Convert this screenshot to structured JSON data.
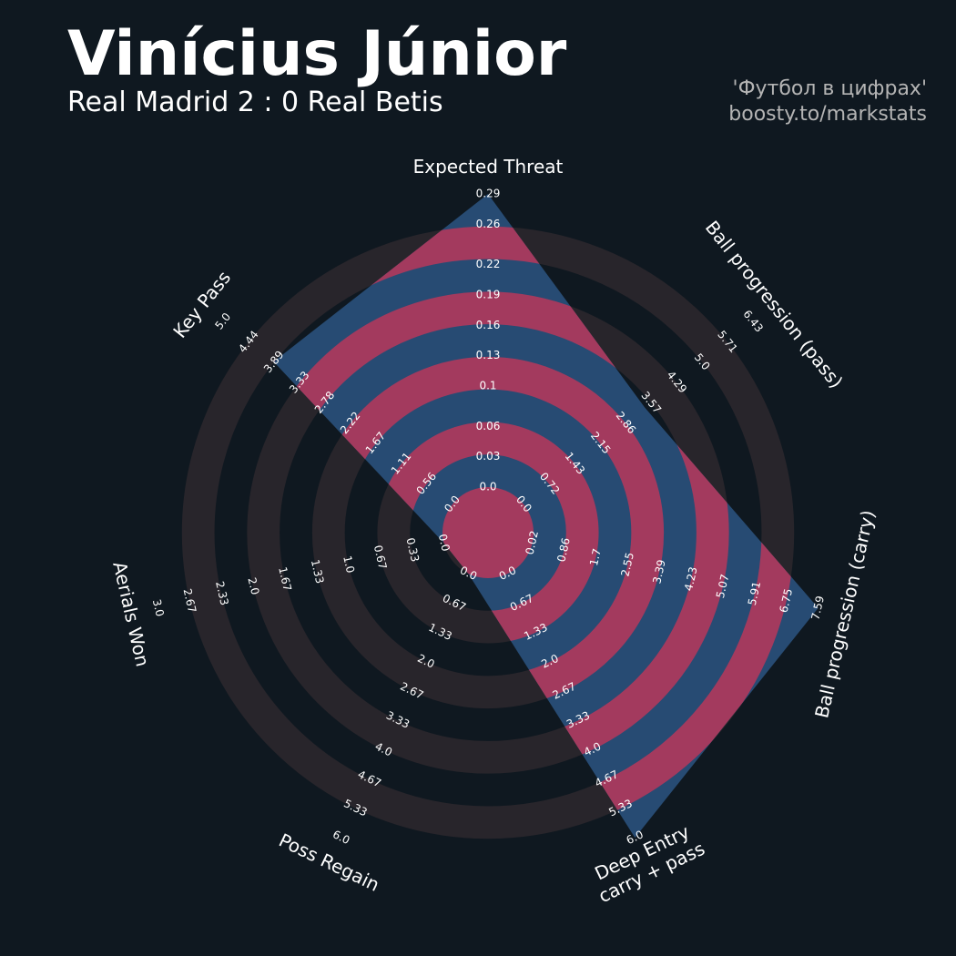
{
  "chart_data": {
    "type": "radar",
    "title": "Vinícius Júnior",
    "subtitle": "Real Madrid 2 : 0 Real Betis",
    "credits": [
      "'Футбол в цифрах'",
      "boosty.to/markstats"
    ],
    "fill_color": "#274b73",
    "ring_highlight_color": "#a33a5e",
    "ring_color": "#28252b",
    "params": [
      {
        "name": [
          "Expected Threat"
        ],
        "value": 0.29,
        "range": [
          0,
          0.29
        ],
        "ticks": [
          {
            "value": 0,
            "label": "0.0"
          },
          0.03,
          0.06,
          0.1,
          0.13,
          0.16,
          0.19,
          0.22,
          0.26,
          0.29
        ]
      },
      {
        "name": [
          "Ball progression (pass)"
        ],
        "value": 3.4,
        "range": [
          0,
          6.43
        ],
        "ticks": [
          {
            "value": 0,
            "label": "0.0"
          },
          0.72,
          1.43,
          2.15,
          2.86,
          3.57,
          4.29,
          {
            "value": 5,
            "label": "5.0"
          },
          5.71,
          6.43
        ]
      },
      {
        "name": [
          "Ball progression (carry)"
        ],
        "value": 7.59,
        "range": [
          0.02,
          7.59
        ],
        "ticks": [
          0.02,
          0.86,
          1.7,
          2.55,
          3.39,
          4.23,
          5.07,
          5.91,
          6.75,
          7.59
        ]
      },
      {
        "name": [
          "Deep Entry",
          "carry + pass"
        ],
        "value": 6,
        "range": [
          0,
          6
        ],
        "ticks": [
          {
            "value": 0,
            "label": "0.0"
          },
          0.67,
          1.33,
          {
            "value": 2,
            "label": "2.0"
          },
          2.67,
          3.33,
          {
            "value": 4,
            "label": "4.0"
          },
          4.67,
          5.33,
          {
            "value": 6,
            "label": "6.0"
          }
        ]
      },
      {
        "name": [
          "Poss Regain"
        ],
        "value": 0,
        "range": [
          0,
          6
        ],
        "ticks": [
          {
            "value": 0,
            "label": "0.0"
          },
          0.67,
          1.33,
          {
            "value": 2,
            "label": "2.0"
          },
          2.67,
          3.33,
          {
            "value": 4,
            "label": "4.0"
          },
          4.67,
          5.33,
          {
            "value": 6,
            "label": "6.0"
          }
        ]
      },
      {
        "name": [
          "Aerials Won"
        ],
        "value": 0,
        "range": [
          0,
          3
        ],
        "ticks": [
          {
            "value": 0,
            "label": "0.0"
          },
          0.33,
          0.67,
          {
            "value": 1,
            "label": "1.0"
          },
          1.33,
          1.67,
          {
            "value": 2,
            "label": "2.0"
          },
          2.33,
          2.67,
          {
            "value": 3,
            "label": "3.0"
          }
        ]
      },
      {
        "name": [
          "Key Pass"
        ],
        "value": 3.9,
        "range": [
          0,
          5
        ],
        "ticks": [
          {
            "value": 0,
            "label": "0.0"
          },
          0.56,
          1.11,
          1.67,
          2.22,
          2.78,
          3.33,
          3.89,
          4.44,
          {
            "value": 5,
            "label": "5.0"
          }
        ]
      }
    ]
  }
}
